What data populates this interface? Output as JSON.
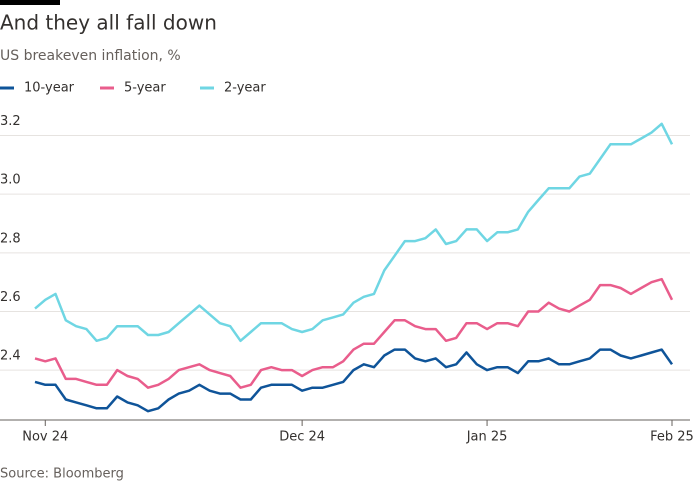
{
  "chart_data": {
    "type": "line",
    "title": "And they all fall down",
    "subtitle": "US breakeven inflation, %",
    "source": "Source: Bloomberg",
    "categories": [
      null,
      "Nov 24",
      null,
      null,
      null,
      null,
      null,
      null,
      null,
      null,
      null,
      null,
      null,
      null,
      null,
      null,
      null,
      null,
      null,
      null,
      null,
      null,
      null,
      null,
      null,
      null,
      "Dec 24",
      null,
      null,
      null,
      null,
      null,
      null,
      null,
      null,
      null,
      null,
      null,
      null,
      null,
      null,
      null,
      null,
      null,
      "Jan 25",
      null,
      null,
      null,
      null,
      null,
      null,
      null,
      null,
      null,
      null,
      null,
      null,
      null,
      null,
      null,
      null,
      null,
      "Feb 25"
    ],
    "series": [
      {
        "name": "10-year",
        "color": "#0f5499",
        "values": [
          2.36,
          2.35,
          2.35,
          2.3,
          2.29,
          2.28,
          2.27,
          2.27,
          2.31,
          2.29,
          2.28,
          2.26,
          2.27,
          2.3,
          2.32,
          2.33,
          2.35,
          2.33,
          2.32,
          2.32,
          2.3,
          2.3,
          2.34,
          2.35,
          2.35,
          2.35,
          2.33,
          2.34,
          2.34,
          2.35,
          2.36,
          2.4,
          2.42,
          2.41,
          2.45,
          2.47,
          2.47,
          2.44,
          2.43,
          2.44,
          2.41,
          2.42,
          2.46,
          2.42,
          2.4,
          2.41,
          2.41,
          2.39,
          2.43,
          2.43,
          2.44,
          2.42,
          2.42,
          2.43,
          2.44,
          2.47,
          2.47,
          2.45,
          2.44,
          2.45,
          2.46,
          2.47,
          2.42
        ]
      },
      {
        "name": "5-year",
        "color": "#e95d8c",
        "values": [
          2.44,
          2.43,
          2.44,
          2.37,
          2.37,
          2.36,
          2.35,
          2.35,
          2.4,
          2.38,
          2.37,
          2.34,
          2.35,
          2.37,
          2.4,
          2.41,
          2.42,
          2.4,
          2.39,
          2.38,
          2.34,
          2.35,
          2.4,
          2.41,
          2.4,
          2.4,
          2.38,
          2.4,
          2.41,
          2.41,
          2.43,
          2.47,
          2.49,
          2.49,
          2.53,
          2.57,
          2.57,
          2.55,
          2.54,
          2.54,
          2.5,
          2.51,
          2.56,
          2.56,
          2.54,
          2.56,
          2.56,
          2.55,
          2.6,
          2.6,
          2.63,
          2.61,
          2.6,
          2.62,
          2.64,
          2.69,
          2.69,
          2.68,
          2.66,
          2.68,
          2.7,
          2.71,
          2.64
        ]
      },
      {
        "name": "2-year",
        "color": "#6fd6e3",
        "values": [
          2.61,
          2.64,
          2.66,
          2.57,
          2.55,
          2.54,
          2.5,
          2.51,
          2.55,
          2.55,
          2.55,
          2.52,
          2.52,
          2.53,
          2.56,
          2.59,
          2.62,
          2.59,
          2.56,
          2.55,
          2.5,
          2.53,
          2.56,
          2.56,
          2.56,
          2.54,
          2.53,
          2.54,
          2.57,
          2.58,
          2.59,
          2.63,
          2.65,
          2.66,
          2.74,
          2.79,
          2.84,
          2.84,
          2.85,
          2.88,
          2.83,
          2.84,
          2.88,
          2.88,
          2.84,
          2.87,
          2.87,
          2.88,
          2.94,
          2.98,
          3.02,
          3.02,
          3.02,
          3.06,
          3.07,
          3.12,
          3.17,
          3.17,
          3.17,
          3.19,
          3.21,
          3.24,
          3.17
        ]
      }
    ],
    "ylim": [
      2.23,
      3.27
    ],
    "yticks": [
      2.4,
      2.6,
      2.8,
      {
        "value": 3.0,
        "label": "3.0"
      },
      3.2
    ],
    "grid": true
  }
}
